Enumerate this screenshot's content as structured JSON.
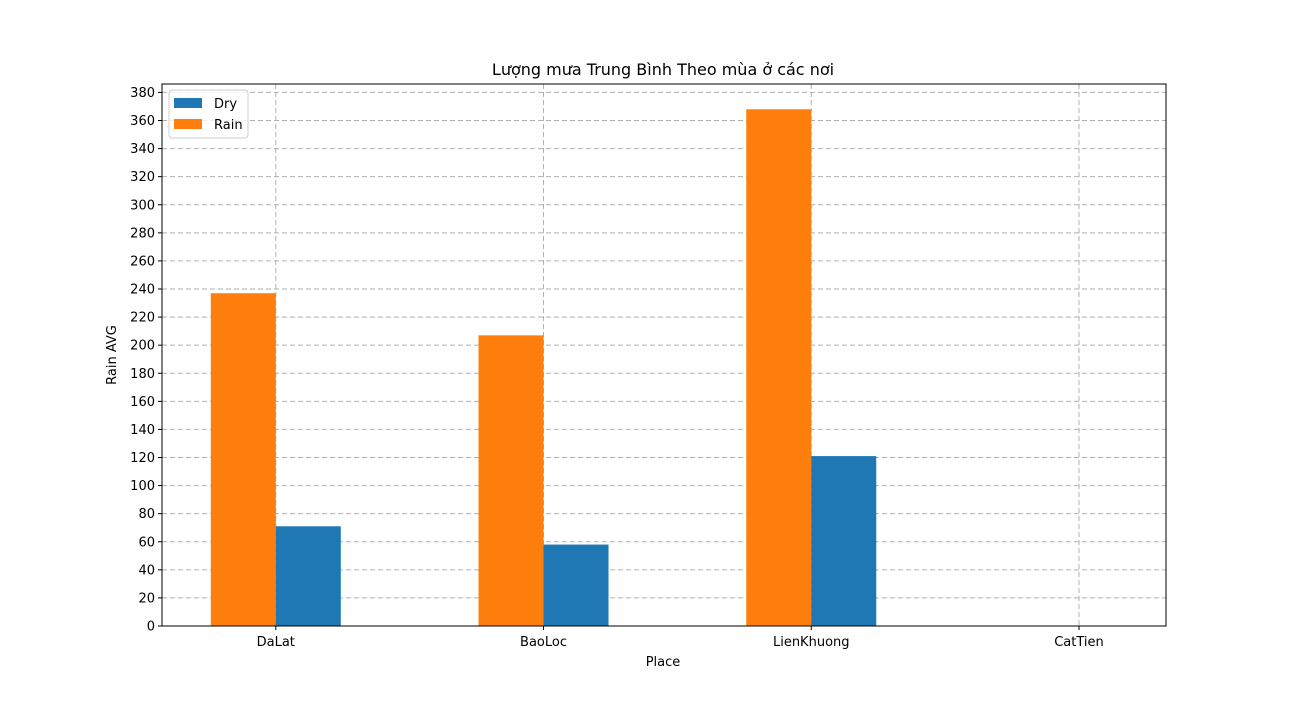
{
  "chart_data": {
    "type": "bar",
    "title": "Lượng mưa Trung Bình Theo mùa ở các nơi",
    "xlabel": "Place",
    "ylabel": "Rain AVG",
    "categories": [
      "DaLat",
      "BaoLoc",
      "LienKhuong",
      "CatTien"
    ],
    "series": [
      {
        "name": "Rain",
        "color": "#ff7f0e",
        "values": [
          237,
          207,
          368,
          0
        ]
      },
      {
        "name": "Dry",
        "color": "#1f77b4",
        "values": [
          71,
          58,
          121,
          0
        ]
      }
    ],
    "legend_order": [
      "Dry",
      "Rain"
    ],
    "legend_position": "upper-left",
    "ylim": [
      0,
      386
    ],
    "yticks": [
      0,
      20,
      40,
      60,
      80,
      100,
      120,
      140,
      160,
      180,
      200,
      220,
      240,
      260,
      280,
      300,
      320,
      340,
      360,
      380
    ],
    "grid": true,
    "grid_style": "dashed",
    "grid_color": "#b0b0b0"
  }
}
